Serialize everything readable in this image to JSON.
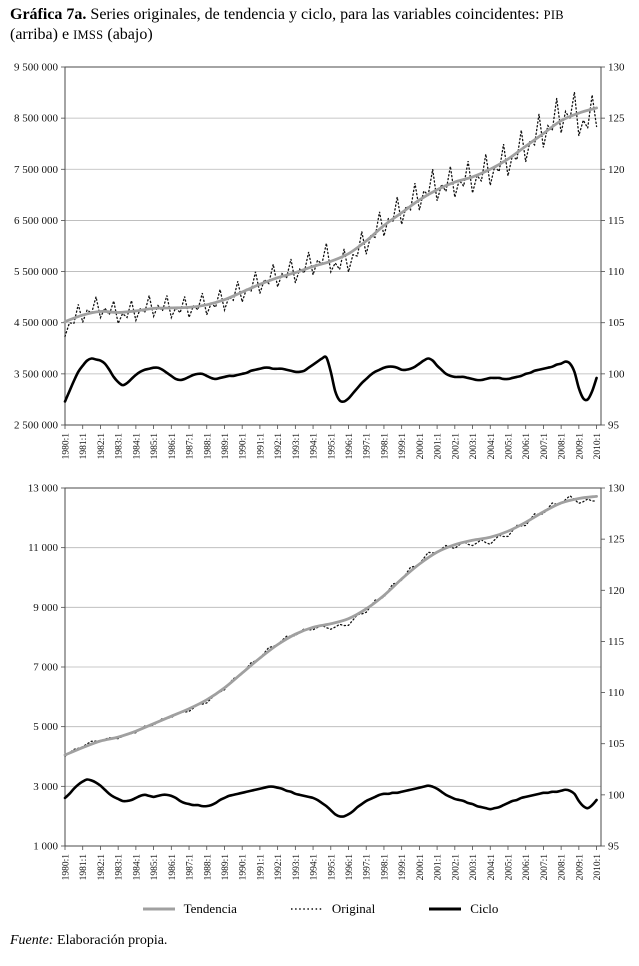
{
  "title": {
    "label": "Gráfica 7a.",
    "text": " Series originales, de tendencia y ciclo, para las variables coincidentes: ",
    "var1": "PIB",
    "mid": " (arriba) e ",
    "var2": "IMSS",
    "end": " (abajo)"
  },
  "legend": {
    "items": [
      {
        "label": "Tendencia",
        "style": "trend"
      },
      {
        "label": "Original",
        "style": "original"
      },
      {
        "label": "Ciclo",
        "style": "cycle"
      }
    ]
  },
  "source": {
    "prefix": "Fuente:",
    "text": " Elaboración propia."
  },
  "colors": {
    "trend": "#a0a0a0",
    "original": "#111111",
    "cycle": "#000000",
    "grid": "#b6b6b6",
    "axis": "#4a4a4a",
    "text": "#111111"
  },
  "chart_data": [
    {
      "type": "line",
      "variable": "PIB",
      "position": "arriba",
      "grid": "horizontal",
      "x_start": 1980,
      "x_end": 2010.25,
      "x_tick_labels": [
        "1980:1",
        "1981:1",
        "1982:1",
        "1983:1",
        "1984:1",
        "1985:1",
        "1986:1",
        "1987:1",
        "1988:1",
        "1989:1",
        "1990:1",
        "1991:1",
        "1992:1",
        "1993:1",
        "1994:1",
        "1995:1",
        "1996:1",
        "1997:1",
        "1998:1",
        "1999:1",
        "2000:1",
        "2001:1",
        "2002:1",
        "2003:1",
        "2004:1",
        "2005:1",
        "2006:1",
        "2007:1",
        "2008:1",
        "2009:1",
        "2010:1"
      ],
      "left_axis": {
        "min": 2500000,
        "max": 9500000,
        "step": 1000000,
        "labels": [
          "2 500 000",
          "3 500 000",
          "4 500 000",
          "5 500 000",
          "6 500 000",
          "7 500 000",
          "8 500 000",
          "9 500 000"
        ]
      },
      "right_axis": {
        "min": 95,
        "max": 130,
        "step": 5,
        "labels": [
          "95",
          "100",
          "105",
          "110",
          "115",
          "120",
          "125",
          "130"
        ]
      },
      "series": {
        "tendencia": {
          "label": "Tendencia",
          "axis": "left",
          "x0": 1980,
          "dx": 1,
          "values": [
            4520000,
            4650000,
            4720000,
            4700000,
            4730000,
            4780000,
            4790000,
            4800000,
            4850000,
            4950000,
            5100000,
            5250000,
            5380000,
            5480000,
            5600000,
            5700000,
            5850000,
            6100000,
            6400000,
            6650000,
            6900000,
            7100000,
            7250000,
            7350000,
            7500000,
            7700000,
            7950000,
            8200000,
            8450000,
            8600000,
            8700000
          ]
        },
        "ciclo": {
          "label": "Ciclo",
          "axis": "right",
          "x0": 1980,
          "dx": 0.25,
          "values": [
            97.3,
            98.3,
            99.3,
            100.2,
            100.8,
            101.3,
            101.5,
            101.4,
            101.3,
            101.0,
            100.4,
            99.7,
            99.2,
            98.9,
            99.1,
            99.5,
            99.9,
            100.2,
            100.4,
            100.5,
            100.6,
            100.6,
            100.4,
            100.1,
            99.8,
            99.5,
            99.4,
            99.5,
            99.7,
            99.9,
            100.0,
            100.0,
            99.8,
            99.6,
            99.5,
            99.6,
            99.7,
            99.8,
            99.8,
            99.9,
            100.0,
            100.1,
            100.3,
            100.4,
            100.5,
            100.6,
            100.6,
            100.5,
            100.5,
            100.5,
            100.4,
            100.3,
            100.2,
            100.2,
            100.3,
            100.6,
            100.9,
            101.2,
            101.5,
            101.6,
            100.2,
            98.3,
            97.4,
            97.3,
            97.6,
            98.1,
            98.6,
            99.1,
            99.5,
            99.9,
            100.2,
            100.4,
            100.6,
            100.7,
            100.7,
            100.6,
            100.4,
            100.4,
            100.5,
            100.7,
            101.0,
            101.3,
            101.5,
            101.3,
            100.8,
            100.4,
            100.0,
            99.8,
            99.7,
            99.7,
            99.7,
            99.6,
            99.5,
            99.4,
            99.4,
            99.5,
            99.6,
            99.6,
            99.6,
            99.5,
            99.5,
            99.6,
            99.7,
            99.8,
            100.0,
            100.1,
            100.3,
            100.4,
            100.5,
            100.6,
            100.7,
            100.9,
            101.0,
            101.2,
            101.0,
            100.2,
            98.6,
            97.6,
            97.5,
            98.3,
            99.6
          ]
        },
        "original": {
          "label": "Original",
          "axis": "left",
          "x0": 1980,
          "dx": 0.25,
          "derived": "tendencia * ciclo/100 * seasonal",
          "seasonal_factors": [
            0.962,
            1.005,
            0.985,
            1.05
          ]
        }
      }
    },
    {
      "type": "line",
      "variable": "IMSS",
      "position": "abajo",
      "grid": "horizontal",
      "x_start": 1980,
      "x_end": 2010.25,
      "x_tick_labels": [
        "1980:1",
        "1981:1",
        "1982:1",
        "1983:1",
        "1984:1",
        "1985:1",
        "1986:1",
        "1987:1",
        "1988:1",
        "1989:1",
        "1990:1",
        "1991:1",
        "1992:1",
        "1993:1",
        "1994:1",
        "1995:1",
        "1996:1",
        "1997:1",
        "1998:1",
        "1999:1",
        "2000:1",
        "2001:1",
        "2002:1",
        "2003:1",
        "2004:1",
        "2005:1",
        "2006:1",
        "2007:1",
        "2008:1",
        "2009:1",
        "2010:1"
      ],
      "left_axis": {
        "min": 1000,
        "max": 13000,
        "step": 2000,
        "labels": [
          "1 000",
          "3 000",
          "5 000",
          "7 000",
          "9 000",
          "11 000",
          "13 000"
        ]
      },
      "right_axis": {
        "min": 95,
        "max": 130,
        "step": 5,
        "labels": [
          "95",
          "100",
          "105",
          "110",
          "115",
          "120",
          "125",
          "130"
        ]
      },
      "series": {
        "tendencia": {
          "label": "Tendencia",
          "axis": "left",
          "x0": 1980,
          "dx": 1,
          "values": [
            4050,
            4300,
            4520,
            4650,
            4850,
            5100,
            5350,
            5600,
            5900,
            6300,
            6800,
            7300,
            7750,
            8100,
            8330,
            8450,
            8620,
            8950,
            9400,
            9950,
            10450,
            10850,
            11100,
            11250,
            11350,
            11550,
            11850,
            12200,
            12500,
            12650,
            12720
          ]
        },
        "ciclo": {
          "label": "Ciclo",
          "axis": "right",
          "x0": 1980,
          "dx": 0.25,
          "values": [
            99.7,
            100.1,
            100.6,
            101.0,
            101.3,
            101.5,
            101.4,
            101.2,
            100.9,
            100.5,
            100.1,
            99.8,
            99.6,
            99.4,
            99.4,
            99.5,
            99.7,
            99.9,
            100.0,
            99.9,
            99.8,
            99.9,
            100.0,
            100.0,
            99.9,
            99.7,
            99.4,
            99.2,
            99.1,
            99.0,
            99.0,
            98.9,
            98.9,
            99.0,
            99.2,
            99.5,
            99.7,
            99.9,
            100.0,
            100.1,
            100.2,
            100.3,
            100.4,
            100.5,
            100.6,
            100.7,
            100.8,
            100.8,
            100.7,
            100.6,
            100.4,
            100.3,
            100.1,
            100.0,
            99.9,
            99.8,
            99.7,
            99.5,
            99.2,
            98.9,
            98.5,
            98.1,
            97.9,
            97.9,
            98.1,
            98.4,
            98.8,
            99.1,
            99.4,
            99.6,
            99.8,
            100.0,
            100.1,
            100.1,
            100.2,
            100.2,
            100.3,
            100.4,
            100.5,
            100.6,
            100.7,
            100.8,
            100.9,
            100.8,
            100.6,
            100.3,
            100.0,
            99.8,
            99.6,
            99.5,
            99.4,
            99.2,
            99.1,
            98.9,
            98.8,
            98.7,
            98.6,
            98.7,
            98.8,
            99.0,
            99.2,
            99.4,
            99.5,
            99.7,
            99.8,
            99.9,
            100.0,
            100.1,
            100.2,
            100.2,
            100.3,
            100.3,
            100.4,
            100.5,
            100.4,
            100.1,
            99.4,
            98.9,
            98.7,
            99.0,
            99.5
          ]
        },
        "original": {
          "label": "Original",
          "axis": "left",
          "x0": 1980,
          "dx": 0.25,
          "derived": "tendencia * ciclo/100 * seasonal",
          "seasonal_factors": [
            0.993,
            1.001,
            1.009,
            0.999
          ]
        }
      }
    }
  ]
}
